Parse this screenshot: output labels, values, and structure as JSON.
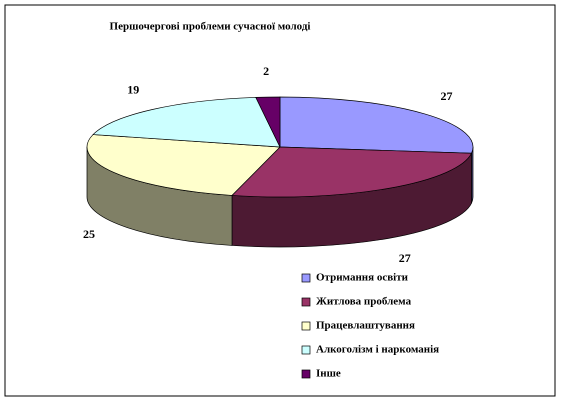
{
  "chart_data": {
    "type": "pie3d",
    "title": "Першочергові проблеми сучасної молоді",
    "categories": [
      "Отримання освіти",
      "Житлова проблема",
      "Працевлаштування",
      "Алкоголізм і наркоманія",
      "Інше"
    ],
    "values": [
      27,
      27,
      25,
      19,
      2
    ],
    "colors": [
      "#9999ff",
      "#993366",
      "#ffffcc",
      "#ccffff",
      "#660066"
    ]
  }
}
